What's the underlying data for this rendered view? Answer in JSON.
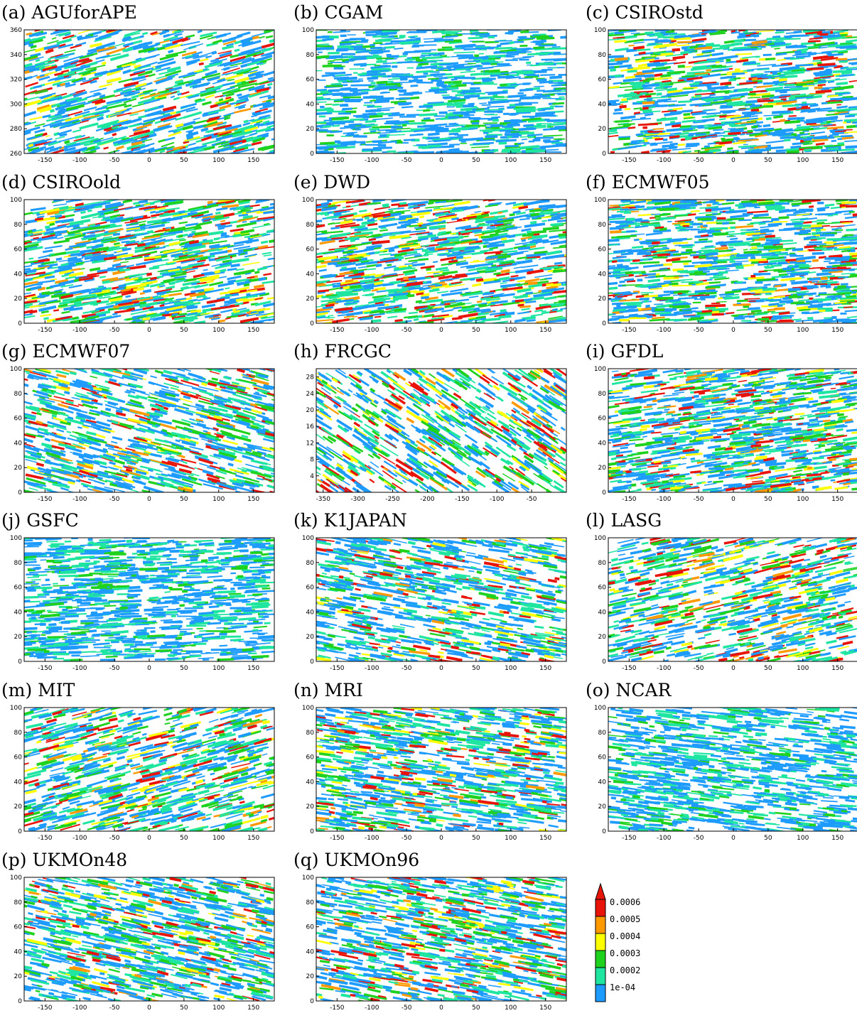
{
  "figure": {
    "colors": {
      "levels": [
        "#1e9bff",
        "#1ee6a0",
        "#1ed21e",
        "#ffff00",
        "#ff9900",
        "#e8140a"
      ],
      "axis": "#000000"
    },
    "legend": {
      "labels": [
        "1e-04",
        "0.0002",
        "0.0003",
        "0.0004",
        "0.0005",
        "0.0006"
      ]
    }
  },
  "chart_data": [
    {
      "type": "heatmap",
      "title": "(a) AGUforAPE",
      "xlim": [
        -180,
        180
      ],
      "ylim": [
        260,
        360
      ],
      "xticks": [
        -150,
        -100,
        -50,
        0,
        50,
        100,
        150
      ],
      "yticks": [
        260,
        280,
        300,
        320,
        340,
        360
      ],
      "density": 0.7,
      "level": 0.35,
      "slope": 0.12
    },
    {
      "type": "heatmap",
      "title": "(b) CGAM",
      "xlim": [
        -180,
        180
      ],
      "ylim": [
        0,
        100
      ],
      "xticks": [
        -150,
        -100,
        -50,
        0,
        50,
        100,
        150
      ],
      "yticks": [
        0,
        20,
        40,
        60,
        80,
        100
      ],
      "density": 0.8,
      "level": 0.25,
      "slope": 0.02
    },
    {
      "type": "heatmap",
      "title": "(c) CSIROstd",
      "xlim": [
        -180,
        180
      ],
      "ylim": [
        0,
        100
      ],
      "xticks": [
        -150,
        -100,
        -50,
        0,
        50,
        100,
        150
      ],
      "yticks": [
        0,
        20,
        40,
        60,
        80,
        100
      ],
      "density": 0.9,
      "level": 0.45,
      "slope": 0.04
    },
    {
      "type": "heatmap",
      "title": "(d) CSIROold",
      "xlim": [
        -180,
        180
      ],
      "ylim": [
        0,
        100
      ],
      "xticks": [
        -150,
        -100,
        -50,
        0,
        50,
        100,
        150
      ],
      "yticks": [
        0,
        20,
        40,
        60,
        80,
        100
      ],
      "density": 0.85,
      "level": 0.7,
      "slope": 0.08
    },
    {
      "type": "heatmap",
      "title": "(e) DWD",
      "xlim": [
        -180,
        180
      ],
      "ylim": [
        0,
        100
      ],
      "xticks": [
        -150,
        -100,
        -50,
        0,
        50,
        100,
        150
      ],
      "yticks": [
        0,
        20,
        40,
        60,
        80,
        100
      ],
      "density": 0.85,
      "level": 0.8,
      "slope": 0.06
    },
    {
      "type": "heatmap",
      "title": "(f) ECMWF05",
      "xlim": [
        -180,
        180
      ],
      "ylim": [
        0,
        100
      ],
      "xticks": [
        -150,
        -100,
        -50,
        0,
        50,
        100,
        150
      ],
      "yticks": [
        0,
        20,
        40,
        60,
        80,
        100
      ],
      "density": 0.9,
      "level": 0.55,
      "slope": 0.03
    },
    {
      "type": "heatmap",
      "title": "(g) ECMWF07",
      "xlim": [
        -180,
        180
      ],
      "ylim": [
        0,
        100
      ],
      "xticks": [
        -150,
        -100,
        -50,
        0,
        50,
        100,
        150
      ],
      "yticks": [
        0,
        20,
        40,
        60,
        80,
        100
      ],
      "density": 0.75,
      "level": 0.45,
      "slope": -0.12
    },
    {
      "type": "heatmap",
      "title": "(h) FRCGC",
      "xlim": [
        -360,
        0
      ],
      "ylim": [
        0,
        30
      ],
      "xticks": [
        -350,
        -300,
        -250,
        -200,
        -150,
        -100,
        -50
      ],
      "yticks": [
        4,
        8,
        12,
        16,
        20,
        24,
        28
      ],
      "density": 0.5,
      "level": 0.85,
      "slope": -0.3
    },
    {
      "type": "heatmap",
      "title": "(i) GFDL",
      "xlim": [
        -180,
        180
      ],
      "ylim": [
        0,
        100
      ],
      "xticks": [
        -150,
        -100,
        -50,
        0,
        50,
        100,
        150
      ],
      "yticks": [
        0,
        20,
        40,
        60,
        80,
        100
      ],
      "density": 0.92,
      "level": 0.5,
      "slope": 0.06
    },
    {
      "type": "heatmap",
      "title": "(j) GSFC",
      "xlim": [
        -180,
        180
      ],
      "ylim": [
        0,
        100
      ],
      "xticks": [
        -150,
        -100,
        -50,
        0,
        50,
        100,
        150
      ],
      "yticks": [
        0,
        20,
        40,
        60,
        80,
        100
      ],
      "density": 0.85,
      "level": 0.22,
      "slope": 0.02
    },
    {
      "type": "heatmap",
      "title": "(k) K1JAPAN",
      "xlim": [
        -180,
        180
      ],
      "ylim": [
        0,
        100
      ],
      "xticks": [
        -150,
        -100,
        -50,
        0,
        50,
        100,
        150
      ],
      "yticks": [
        0,
        20,
        40,
        60,
        80,
        100
      ],
      "density": 0.7,
      "level": 0.45,
      "slope": -0.08
    },
    {
      "type": "heatmap",
      "title": "(l) LASG",
      "xlim": [
        -180,
        180
      ],
      "ylim": [
        0,
        100
      ],
      "xticks": [
        -150,
        -100,
        -50,
        0,
        50,
        100,
        150
      ],
      "yticks": [
        0,
        20,
        40,
        60,
        80,
        100
      ],
      "density": 0.6,
      "level": 0.75,
      "slope": 0.1
    },
    {
      "type": "heatmap",
      "title": "(m) MIT",
      "xlim": [
        -180,
        180
      ],
      "ylim": [
        0,
        100
      ],
      "xticks": [
        -150,
        -100,
        -50,
        0,
        50,
        100,
        150
      ],
      "yticks": [
        0,
        20,
        40,
        60,
        80,
        100
      ],
      "density": 0.65,
      "level": 0.65,
      "slope": 0.12
    },
    {
      "type": "heatmap",
      "title": "(n) MRI",
      "xlim": [
        -180,
        180
      ],
      "ylim": [
        0,
        100
      ],
      "xticks": [
        -150,
        -100,
        -50,
        0,
        50,
        100,
        150
      ],
      "yticks": [
        0,
        20,
        40,
        60,
        80,
        100
      ],
      "density": 0.85,
      "level": 0.45,
      "slope": -0.06
    },
    {
      "type": "heatmap",
      "title": "(o) NCAR",
      "xlim": [
        -180,
        180
      ],
      "ylim": [
        0,
        100
      ],
      "xticks": [
        -150,
        -100,
        -50,
        0,
        50,
        100,
        150
      ],
      "yticks": [
        0,
        20,
        40,
        60,
        80,
        100
      ],
      "density": 0.8,
      "level": 0.18,
      "slope": -0.05
    },
    {
      "type": "heatmap",
      "title": "(p) UKMOn48",
      "xlim": [
        -180,
        180
      ],
      "ylim": [
        0,
        100
      ],
      "xticks": [
        -150,
        -100,
        -50,
        0,
        50,
        100,
        150
      ],
      "yticks": [
        0,
        20,
        40,
        60,
        80,
        100
      ],
      "density": 0.8,
      "level": 0.4,
      "slope": -0.1
    },
    {
      "type": "heatmap",
      "title": "(q) UKMOn96",
      "xlim": [
        -180,
        180
      ],
      "ylim": [
        0,
        100
      ],
      "xticks": [
        -150,
        -100,
        -50,
        0,
        50,
        100,
        150
      ],
      "yticks": [
        0,
        20,
        40,
        60,
        80,
        100
      ],
      "density": 0.8,
      "level": 0.5,
      "slope": -0.08
    }
  ]
}
